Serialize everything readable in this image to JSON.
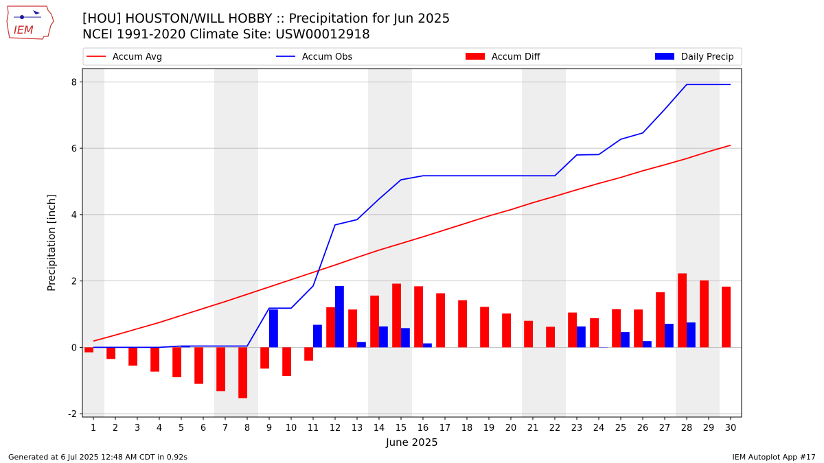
{
  "logo": {
    "text": "IEM",
    "icon": "iowa-state-map-icon"
  },
  "title": "[HOU] HOUSTON/WILL HOBBY :: Precipitation for Jun 2025",
  "subtitle": "NCEI 1991-2020 Climate Site: USW00012918",
  "footer": {
    "generated": "Generated at 6 Jul 2025 12:48 AM CDT in 0.92s",
    "app": "IEM Autoplot App #17"
  },
  "chart_data": {
    "type": "bar",
    "xlabel": "June 2025",
    "ylabel": "Precipitation [inch]",
    "xlim": [
      0.5,
      30.5
    ],
    "ylim": [
      -2.1,
      8.4
    ],
    "yticks": [
      -2,
      0,
      2,
      4,
      6,
      8
    ],
    "grid": "y",
    "legend_placement": "top",
    "weekend_shading": [
      [
        0.5,
        1.5
      ],
      [
        6.5,
        8.5
      ],
      [
        13.5,
        15.5
      ],
      [
        20.5,
        22.5
      ],
      [
        27.5,
        29.5
      ]
    ],
    "days": [
      1,
      2,
      3,
      4,
      5,
      6,
      7,
      8,
      9,
      10,
      11,
      12,
      13,
      14,
      15,
      16,
      17,
      18,
      19,
      20,
      21,
      22,
      23,
      24,
      25,
      26,
      27,
      28,
      29,
      30
    ],
    "series": [
      {
        "name": "Accum Avg",
        "kind": "line",
        "color": "#ff0000",
        "values": [
          0.19,
          0.37,
          0.56,
          0.75,
          0.96,
          1.17,
          1.38,
          1.6,
          1.82,
          2.04,
          2.26,
          2.48,
          2.71,
          2.93,
          3.13,
          3.33,
          3.54,
          3.75,
          3.96,
          4.15,
          4.36,
          4.55,
          4.75,
          4.94,
          5.12,
          5.32,
          5.5,
          5.69,
          5.9,
          6.09
        ]
      },
      {
        "name": "Accum Obs",
        "kind": "line",
        "color": "#0000ff",
        "values": [
          0.0,
          0.0,
          0.0,
          0.0,
          0.04,
          0.04,
          0.04,
          0.04,
          1.18,
          1.18,
          1.85,
          3.69,
          3.85,
          4.47,
          5.05,
          5.17,
          5.17,
          5.17,
          5.17,
          5.17,
          5.17,
          5.17,
          5.8,
          5.81,
          6.27,
          6.46,
          7.17,
          7.92,
          7.92,
          7.92
        ]
      },
      {
        "name": "Accum Diff",
        "kind": "bar",
        "color": "#ff0000",
        "values": [
          -0.15,
          -0.35,
          -0.55,
          -0.73,
          -0.9,
          -1.1,
          -1.32,
          -1.53,
          -0.64,
          -0.86,
          -0.4,
          1.21,
          1.14,
          1.56,
          1.92,
          1.84,
          1.63,
          1.42,
          1.22,
          1.02,
          0.8,
          0.62,
          1.05,
          0.88,
          1.15,
          1.14,
          1.66,
          2.23,
          2.02,
          1.83
        ]
      },
      {
        "name": "Daily Precip",
        "kind": "bar",
        "color": "#0000ff",
        "values": [
          0.0,
          0.0,
          0.0,
          0.0,
          0.04,
          0.0,
          0.0,
          0.0,
          1.14,
          0.0,
          0.68,
          1.85,
          0.16,
          0.63,
          0.58,
          0.12,
          0.0,
          0.0,
          0.0,
          0.0,
          0.0,
          0.0,
          0.63,
          0.01,
          0.46,
          0.19,
          0.71,
          0.75,
          0.0,
          0.0
        ]
      }
    ]
  }
}
